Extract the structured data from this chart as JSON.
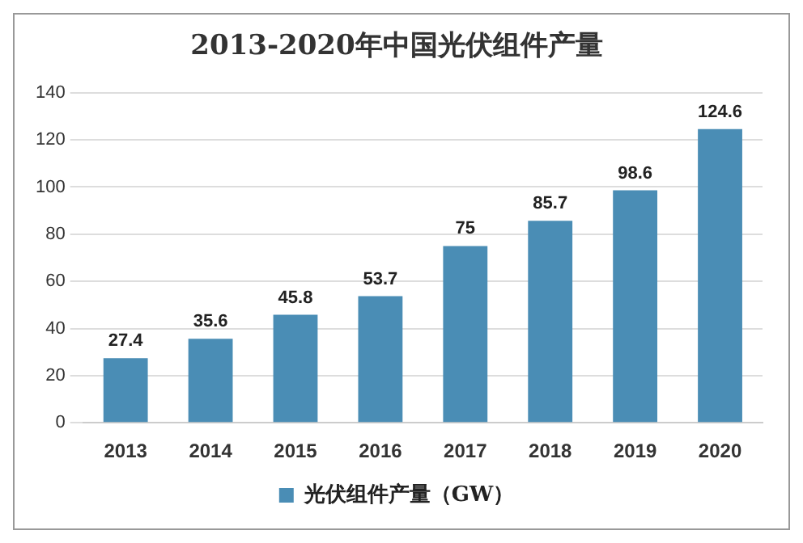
{
  "chart_data": {
    "type": "bar",
    "title": "2013-2020年中国光伏组件产量",
    "categories": [
      "2013",
      "2014",
      "2015",
      "2016",
      "2017",
      "2018",
      "2019",
      "2020"
    ],
    "series": [
      {
        "name": "光伏组件产量（GW）",
        "color": "#4a8db5",
        "values": [
          27.4,
          35.6,
          45.8,
          53.7,
          75,
          85.7,
          98.6,
          124.6
        ]
      }
    ],
    "ylim": [
      0,
      140
    ],
    "yticks": [
      0,
      20,
      40,
      60,
      80,
      100,
      120,
      140
    ],
    "grid": "y",
    "legend": "bottom",
    "data_labels": true
  }
}
